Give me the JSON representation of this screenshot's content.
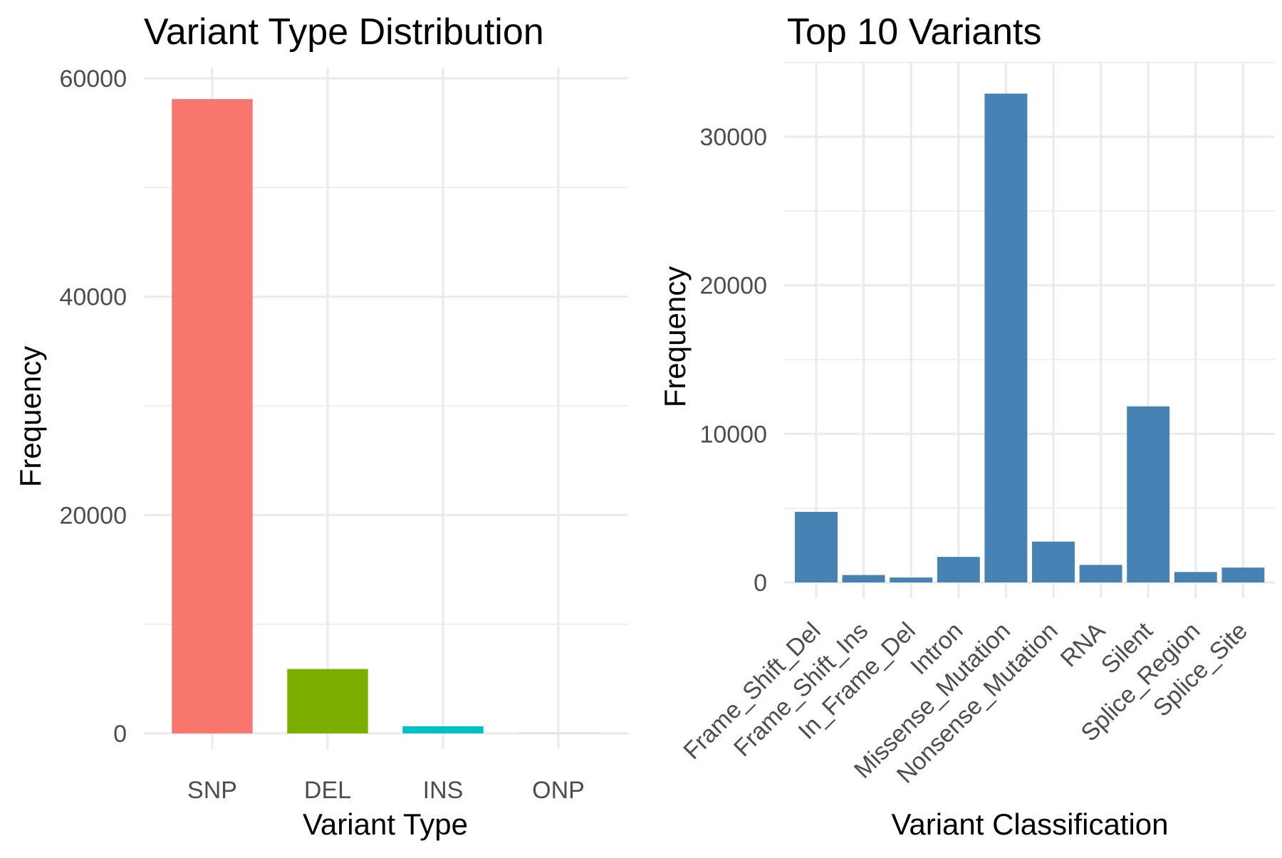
{
  "chart_data": [
    {
      "type": "bar",
      "title": "Variant Type Distribution",
      "xlabel": "Variant Type",
      "ylabel": "Frequency",
      "categories": [
        "SNP",
        "DEL",
        "INS",
        "ONP"
      ],
      "values": [
        58100,
        5900,
        650,
        20
      ],
      "colors": [
        "#F8766D",
        "#7CAE00",
        "#00BFC4",
        "#C77CFF"
      ],
      "ylim": [
        0,
        60000
      ],
      "yticks": [
        0,
        20000,
        40000,
        60000
      ],
      "ytick_labels": [
        "0",
        "20000",
        "40000",
        "60000"
      ],
      "grid": true,
      "legend": "none"
    },
    {
      "type": "bar",
      "title": "Top 10 Variants",
      "xlabel": "Variant Classification",
      "ylabel": "Frequency",
      "categories": [
        "Frame_Shift_Del",
        "Frame_Shift_Ins",
        "In_Frame_Del",
        "Intron",
        "Missense_Mutation",
        "Nonsense_Mutation",
        "RNA",
        "Silent",
        "Splice_Region",
        "Splice_Site"
      ],
      "values": [
        4750,
        500,
        330,
        1720,
        32900,
        2750,
        1180,
        11850,
        700,
        1000
      ],
      "color": "#4682B4",
      "ylim": [
        0,
        30000
      ],
      "yticks": [
        0,
        10000,
        20000,
        30000
      ],
      "ytick_labels": [
        "0",
        "10000",
        "20000",
        "30000"
      ],
      "x_tick_rotation": "45 degrees",
      "grid": true,
      "legend": "none"
    }
  ]
}
